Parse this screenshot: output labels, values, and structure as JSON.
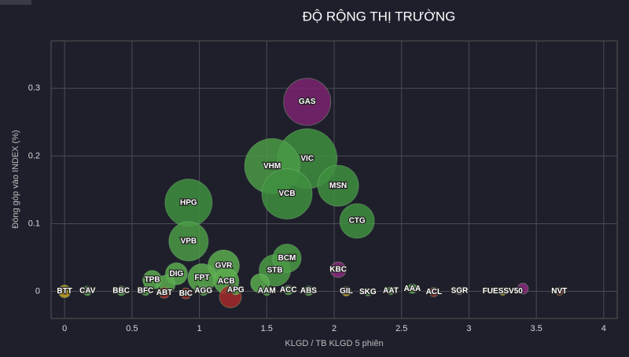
{
  "chart_data": {
    "type": "bubble",
    "title": "ĐỘ RỘNG THỊ TRƯỜNG",
    "x_label": "KLGD / TB KLGD 5 phiên",
    "y_label": "Đóng góp vào INDEX (%)",
    "xlim": [
      -0.1,
      4.1
    ],
    "ylim": [
      -0.04,
      0.37
    ],
    "xticks": [
      0,
      0.5,
      1,
      1.5,
      2,
      2.5,
      3,
      3.5,
      4
    ],
    "yticks": [
      0,
      0.1,
      0.2,
      0.3
    ],
    "grid": true,
    "labels": [
      "VIC",
      "VHM",
      "VCB",
      "GAS",
      "HPG",
      "MSN",
      "VPB",
      "CTG",
      "GVR",
      "STB",
      "BCM",
      "FPT",
      "ACB",
      null,
      "DIG",
      "TPB",
      "KBC",
      null,
      null,
      "BTT",
      "CAV",
      "BBC",
      "BFC",
      "ABT",
      "BIC",
      "AGG",
      "APG",
      "AAM",
      "ACC",
      "ABS",
      "GIL",
      "SKG",
      "AAT",
      "AAA",
      "ACL",
      "SGR",
      "FUESSV50",
      null,
      "NVT"
    ],
    "x": [
      1.8,
      1.54,
      1.65,
      1.8,
      0.92,
      2.03,
      0.92,
      2.17,
      1.18,
      1.56,
      1.65,
      1.02,
      1.2,
      1.23,
      0.83,
      0.65,
      2.03,
      1.45,
      0.75,
      0,
      0.17,
      0.42,
      0.6,
      0.74,
      0.9,
      1.03,
      1.27,
      1.5,
      1.66,
      1.81,
      2.09,
      2.25,
      2.42,
      2.58,
      2.74,
      2.93,
      3.25,
      3.4,
      3.67
    ],
    "values": [
      0.196,
      0.185,
      0.144,
      0.28,
      0.131,
      0.156,
      0.074,
      0.104,
      0.038,
      0.031,
      0.049,
      0.02,
      0.015,
      -0.008,
      0.026,
      0.017,
      0.032,
      0.012,
      0.01,
      0,
      0.001,
      0.001,
      0.001,
      -0.002,
      -0.003,
      0.001,
      0.002,
      0.001,
      0.002,
      0.001,
      0,
      -0.001,
      0.001,
      0.004,
      -0.001,
      0.001,
      0,
      0.004,
      0
    ],
    "sizes": [
      38,
      35,
      32,
      30,
      30,
      26,
      25,
      22,
      20,
      20,
      18,
      18,
      16,
      14,
      14,
      12,
      10,
      12,
      12,
      8,
      6,
      6,
      6,
      7,
      7,
      6,
      6,
      6,
      6,
      6,
      6,
      5,
      5,
      6,
      6,
      5,
      5,
      7,
      5
    ],
    "colors": [
      "#3f8f3f",
      "#4a9a45",
      "#3f8f3f",
      "#7b2370",
      "#3f8f3f",
      "#3f8f3f",
      "#4a9a45",
      "#3f8f3f",
      "#5aac4e",
      "#4a9a45",
      "#4a9a45",
      "#5aac4e",
      "#5aac4e",
      "#a52a2a",
      "#5aac4e",
      "#5aac4e",
      "#8b2a7f",
      "#5aac4e",
      "#5aac4e",
      "#c9a227",
      "#5aac4e",
      "#5aac4e",
      "#5aac4e",
      "#a52a2a",
      "#a52a2a",
      "#5aac4e",
      "#5aac4e",
      "#5aac4e",
      "#5aac4e",
      "#5aac4e",
      "#c9a227",
      "#5aac4e",
      "#5aac4e",
      "#5aac4e",
      "#a52a2a",
      "#8b2a7f",
      "#c9a227",
      "#8b2a7f",
      "#a52a2a"
    ]
  }
}
